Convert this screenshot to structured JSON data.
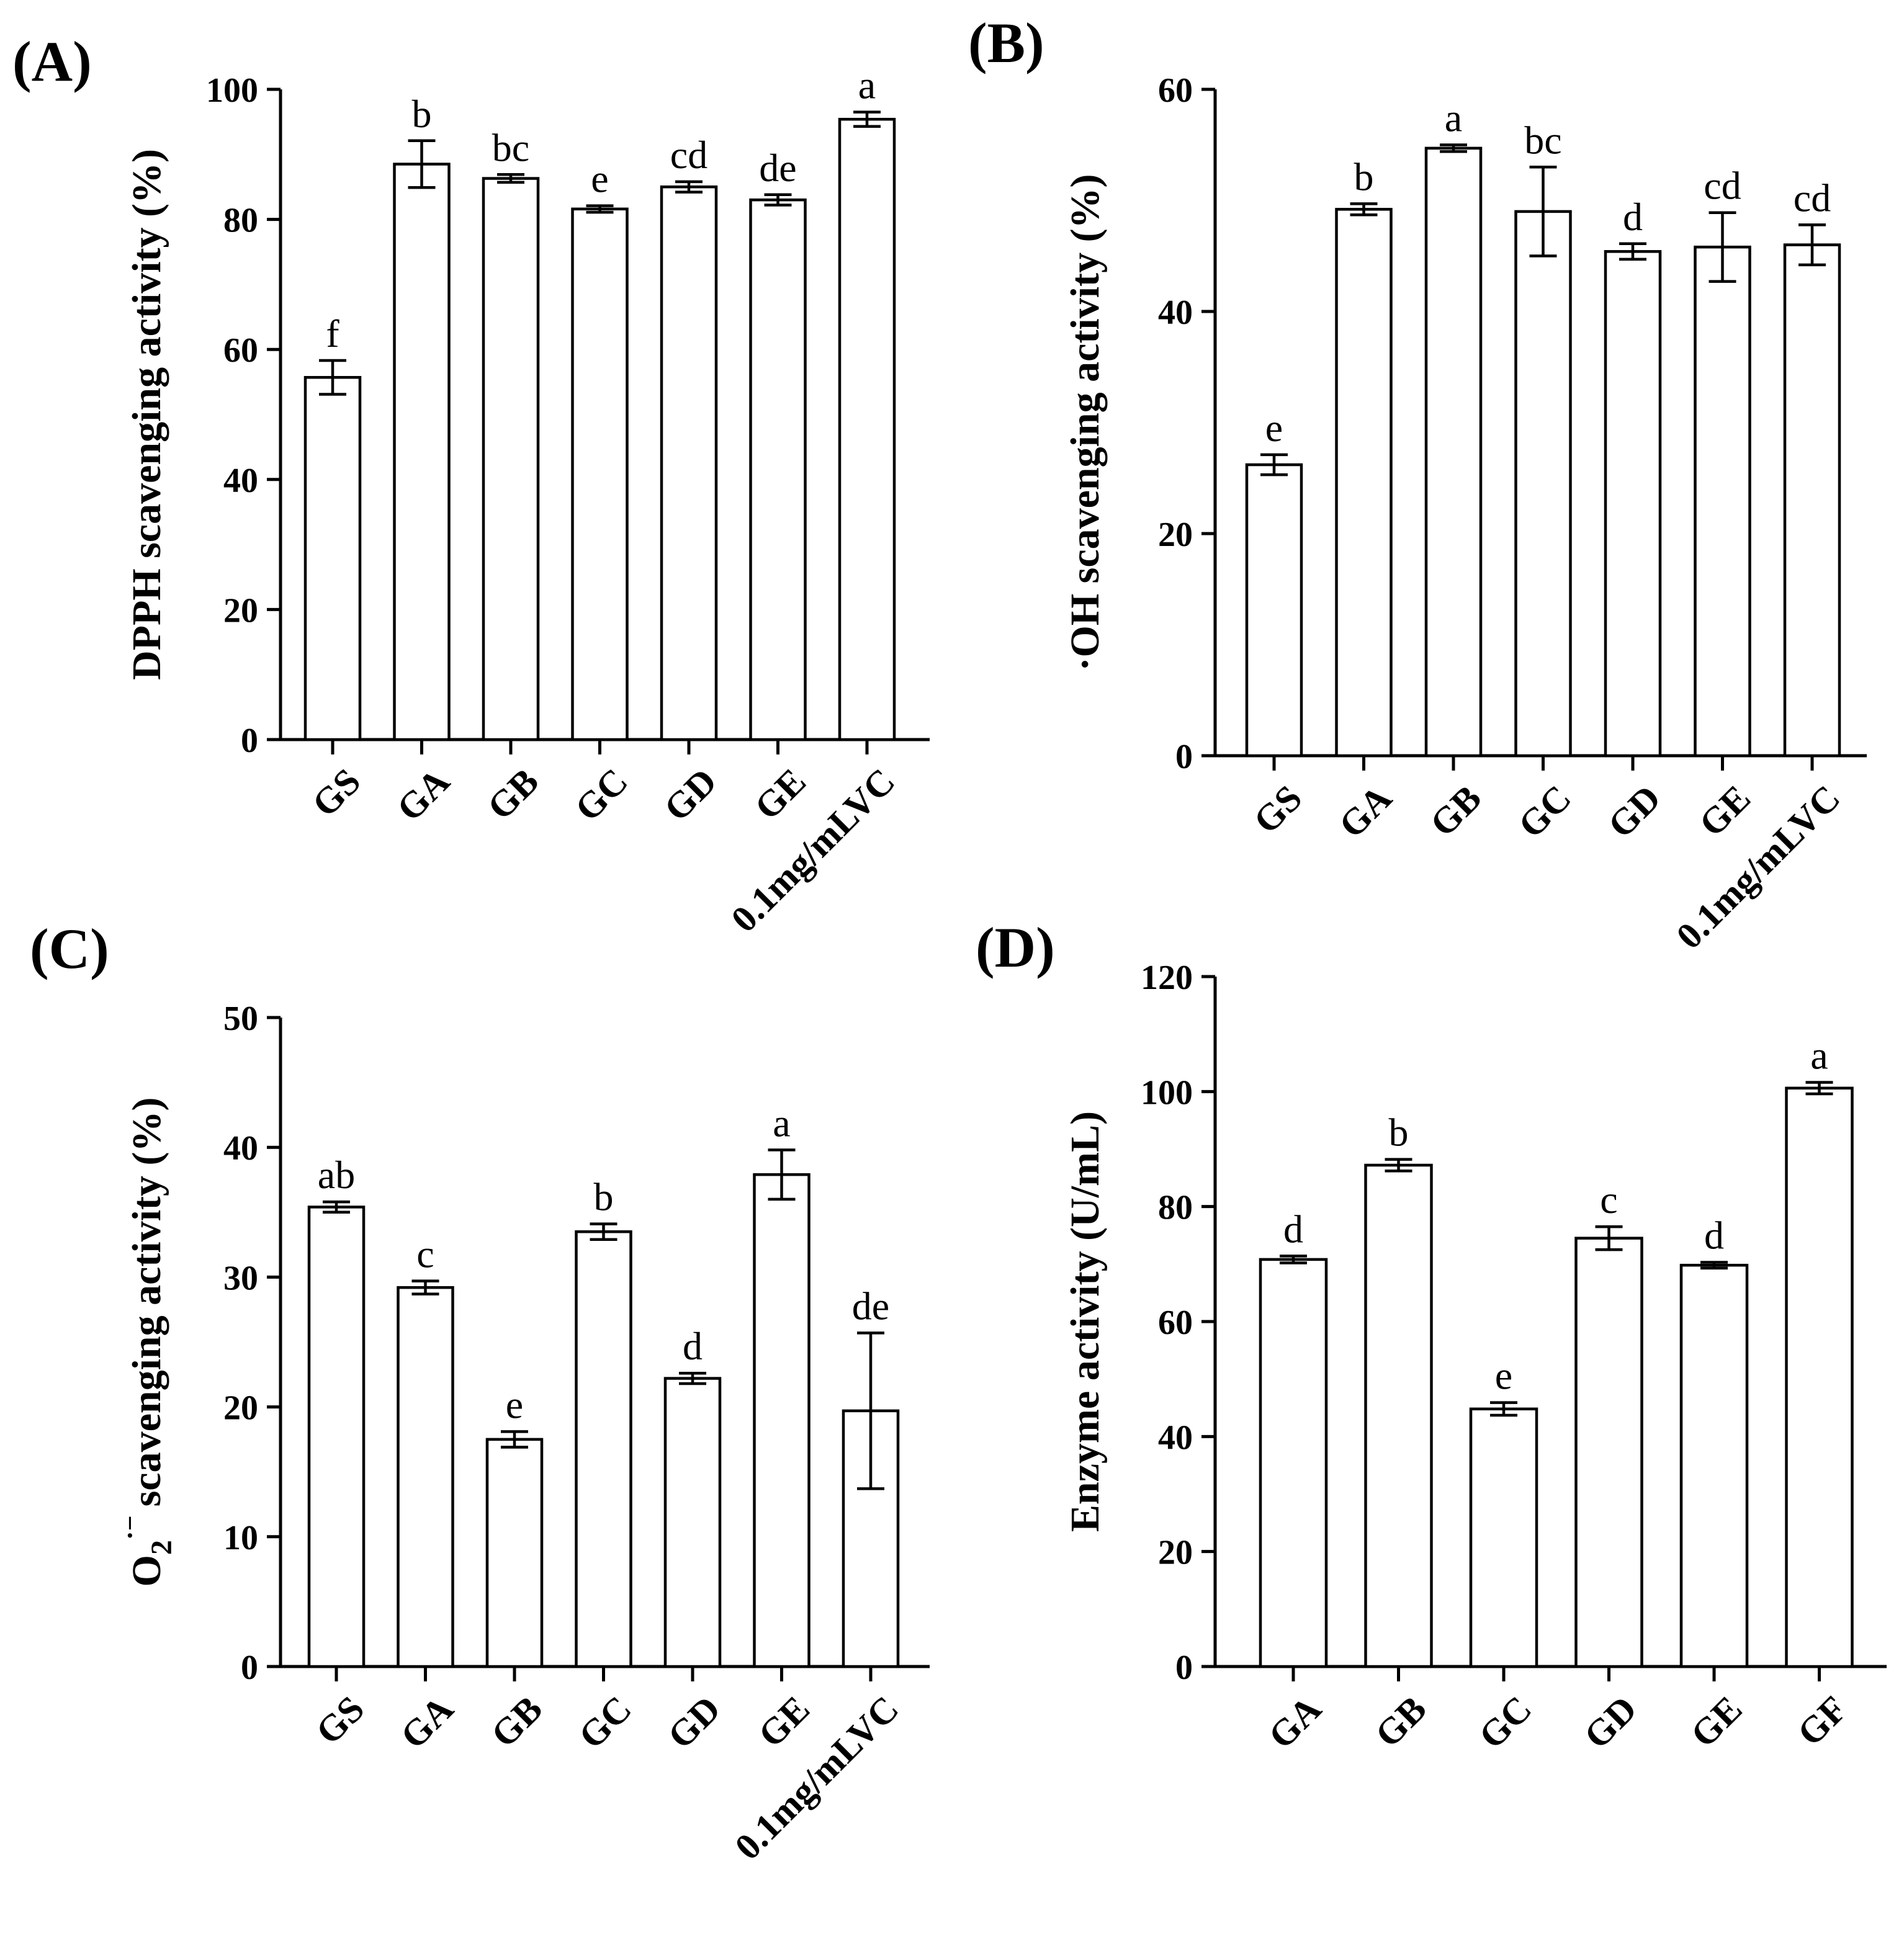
{
  "chart_data": [
    {
      "panel": "(A)",
      "type": "bar",
      "ylabel": "DPPH scavenging activity (%)",
      "ylim": [
        0,
        100
      ],
      "yticks": [
        "0",
        "20",
        "40",
        "60",
        "80",
        "100"
      ],
      "categories": [
        "GS",
        "GA",
        "GB",
        "GC",
        "GD",
        "GE",
        "0.1mg/mLVC"
      ],
      "values": [
        55.7,
        88.5,
        86.3,
        81.6,
        85.0,
        83.0,
        95.4
      ],
      "errors": [
        2.6,
        3.6,
        0.6,
        0.5,
        0.8,
        0.8,
        1.1
      ],
      "letters": [
        "f",
        "b",
        "bc",
        "e",
        "cd",
        "de",
        "a"
      ]
    },
    {
      "panel": "(B)",
      "type": "bar",
      "ylabel": "·OH scavenging activity (%)",
      "ylim": [
        0,
        60
      ],
      "yticks": [
        "0",
        "20",
        "40",
        "60"
      ],
      "categories": [
        "GS",
        "GA",
        "GB",
        "GC",
        "GD",
        "GE",
        "0.1mg/mLVC"
      ],
      "values": [
        26.2,
        49.2,
        54.7,
        49.0,
        45.4,
        45.8,
        46.0
      ],
      "errors": [
        0.9,
        0.5,
        0.3,
        4.0,
        0.7,
        3.1,
        1.8
      ],
      "letters": [
        "e",
        "b",
        "a",
        "bc",
        "d",
        "cd",
        "cd"
      ]
    },
    {
      "panel": "(C)",
      "type": "bar",
      "ylabel_prefix": "O",
      "ylabel_sub": "2",
      "ylabel_sup": "·−",
      "ylabel": "scavenging activity (%)",
      "ylim": [
        0,
        50
      ],
      "yticks": [
        "0",
        "10",
        "20",
        "30",
        "40",
        "50"
      ],
      "categories": [
        "GS",
        "GA",
        "GB",
        "GC",
        "GD",
        "GE",
        "0.1mg/mLVC"
      ],
      "values": [
        35.4,
        29.2,
        17.5,
        33.5,
        22.2,
        37.9,
        19.7
      ],
      "errors": [
        0.4,
        0.5,
        0.6,
        0.6,
        0.4,
        1.9,
        6.0
      ],
      "letters": [
        "ab",
        "c",
        "e",
        "b",
        "d",
        "a",
        "de"
      ]
    },
    {
      "panel": "(D)",
      "type": "bar",
      "ylabel": "Enzyme activity (U/mL)",
      "ylim": [
        0,
        120
      ],
      "yticks": [
        "0",
        "20",
        "40",
        "60",
        "80",
        "100",
        "120"
      ],
      "categories": [
        "GA",
        "GB",
        "GC",
        "GD",
        "GE",
        "GF"
      ],
      "values": [
        70.8,
        87.2,
        44.8,
        74.5,
        69.8,
        100.6
      ],
      "errors": [
        0.6,
        1.0,
        1.1,
        2.0,
        0.5,
        1.0
      ],
      "letters": [
        "d",
        "b",
        "e",
        "c",
        "d",
        "a"
      ]
    }
  ]
}
